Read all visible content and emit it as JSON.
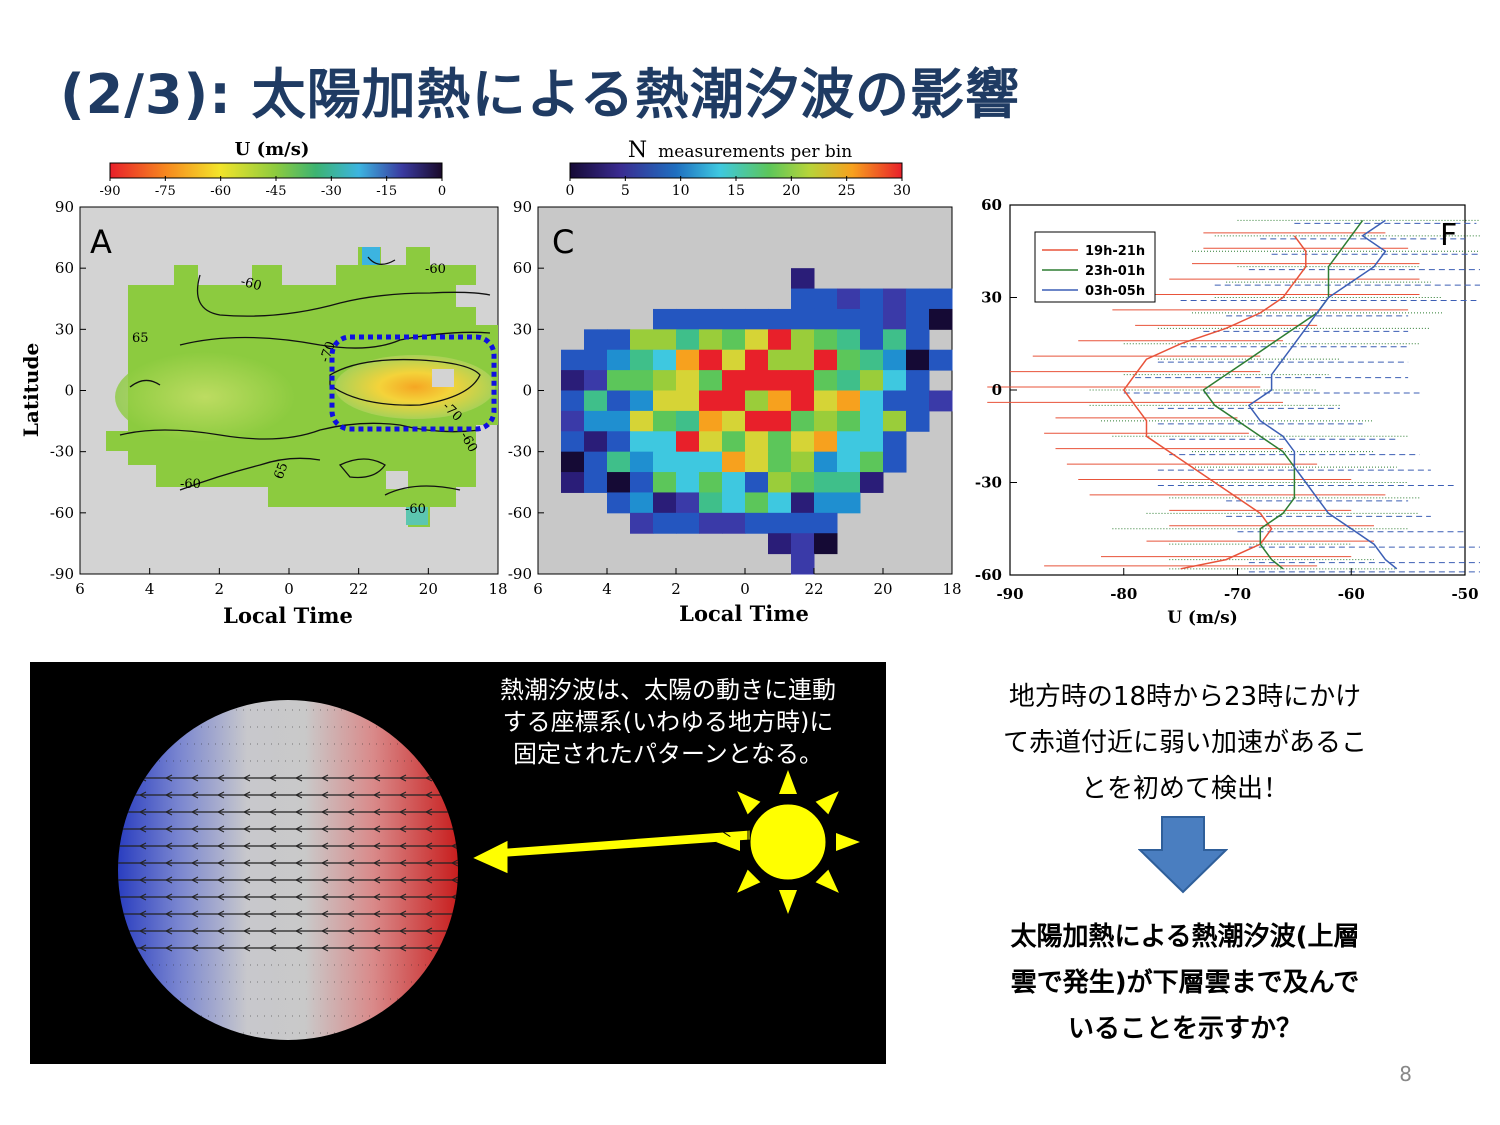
{
  "slide": {
    "title": "(2/3):  太陽加熱による熱潮汐波の影響",
    "page_number": "8"
  },
  "panel_a": {
    "letter": "A",
    "colorbar_title": "U (m/s)",
    "colorbar_ticks": [
      "-90",
      "-75",
      "-60",
      "-45",
      "-30",
      "-15",
      "0"
    ],
    "ylabel": "Latitude",
    "xlabel": "Local Time",
    "yticks": [
      "90",
      "60",
      "30",
      "0",
      "-30",
      "-60",
      "-90"
    ],
    "xticks": [
      "6",
      "4",
      "2",
      "0",
      "22",
      "20",
      "18"
    ],
    "contour_labels": [
      "65",
      "-60",
      "65",
      "-60",
      "-70",
      "-70",
      "-60",
      "-60",
      "-60"
    ]
  },
  "panel_c": {
    "letter": "C",
    "colorbar_title_n": "N",
    "colorbar_title_rest": "measurements per bin",
    "colorbar_ticks": [
      "0",
      "5",
      "10",
      "15",
      "20",
      "25",
      "30"
    ],
    "xlabel": "Local Time",
    "yticks": [
      "90",
      "60",
      "30",
      "0",
      "-30",
      "-60",
      "-90"
    ],
    "xticks": [
      "6",
      "4",
      "2",
      "0",
      "22",
      "20",
      "18"
    ]
  },
  "chart_data": {
    "type": "line",
    "panel_letter": "F",
    "xlabel": "U (m/s)",
    "ylabel": "",
    "xlim": [
      -90,
      -50
    ],
    "ylim": [
      -60,
      60
    ],
    "xticks": [
      "-90",
      "-80",
      "-70",
      "-60",
      "-50"
    ],
    "yticks": [
      "60",
      "30",
      "0",
      "-30",
      "-60"
    ],
    "legend_position": "top-left",
    "series": [
      {
        "name": "19h-21h",
        "color": "#e8533a",
        "points": [
          [
            -65,
            50
          ],
          [
            -64,
            45
          ],
          [
            -64,
            40
          ],
          [
            -65,
            35
          ],
          [
            -66,
            30
          ],
          [
            -68,
            25
          ],
          [
            -71,
            20
          ],
          [
            -75,
            15
          ],
          [
            -78,
            10
          ],
          [
            -79,
            5
          ],
          [
            -80,
            0
          ],
          [
            -79,
            -5
          ],
          [
            -78,
            -10
          ],
          [
            -78,
            -15
          ],
          [
            -76,
            -20
          ],
          [
            -74,
            -25
          ],
          [
            -72,
            -30
          ],
          [
            -70,
            -35
          ],
          [
            -68,
            -40
          ],
          [
            -67,
            -45
          ],
          [
            -68,
            -50
          ],
          [
            -71,
            -55
          ],
          [
            -75,
            -58
          ]
        ]
      },
      {
        "name": "23h-01h",
        "color": "#2e7d32",
        "points": [
          [
            -59,
            55
          ],
          [
            -60,
            50
          ],
          [
            -61,
            45
          ],
          [
            -62,
            40
          ],
          [
            -62,
            35
          ],
          [
            -62,
            30
          ],
          [
            -63,
            25
          ],
          [
            -65,
            20
          ],
          [
            -67,
            15
          ],
          [
            -69,
            10
          ],
          [
            -71,
            5
          ],
          [
            -73,
            0
          ],
          [
            -72,
            -5
          ],
          [
            -70,
            -10
          ],
          [
            -68,
            -15
          ],
          [
            -66,
            -20
          ],
          [
            -65,
            -25
          ],
          [
            -65,
            -30
          ],
          [
            -65,
            -35
          ],
          [
            -66,
            -40
          ],
          [
            -68,
            -45
          ],
          [
            -68,
            -50
          ],
          [
            -67,
            -55
          ],
          [
            -66,
            -58
          ]
        ]
      },
      {
        "name": "03h-05h",
        "color": "#3c5fb5",
        "points": [
          [
            -57,
            55
          ],
          [
            -59,
            50
          ],
          [
            -57,
            45
          ],
          [
            -58,
            40
          ],
          [
            -60,
            35
          ],
          [
            -62,
            30
          ],
          [
            -63,
            25
          ],
          [
            -64,
            20
          ],
          [
            -65,
            15
          ],
          [
            -66,
            10
          ],
          [
            -67,
            5
          ],
          [
            -67,
            0
          ],
          [
            -69,
            -5
          ],
          [
            -68,
            -10
          ],
          [
            -66,
            -15
          ],
          [
            -65,
            -20
          ],
          [
            -65,
            -25
          ],
          [
            -64,
            -30
          ],
          [
            -63,
            -35
          ],
          [
            -62,
            -40
          ],
          [
            -60,
            -45
          ],
          [
            -58,
            -50
          ],
          [
            -57,
            -55
          ],
          [
            -56,
            -58
          ]
        ]
      }
    ]
  },
  "venus_image": {
    "caption": "熱潮汐波は、太陽の動きに連動する座標系(いわゆる地方時)に固定されたパターンとなる。",
    "caption_lines": [
      "熱潮汐波は、太陽の動きに連動",
      "する座標系(いわゆる地方時)に",
      "固定されたパターンとなる。"
    ],
    "sun_color": "#ffff00",
    "arrow_color": "#ffff00"
  },
  "right_text": {
    "finding_lines": [
      "地方時の18時から23時にかけ",
      "て赤道付近に弱い加速があるこ",
      "とを初めて検出！"
    ],
    "arrow_color": "#4a7ec0",
    "conclusion_lines": [
      "太陽加熱による熱潮汐波(上層",
      "雲で発生)が下層雲まで及んで",
      "いることを示すか？"
    ]
  }
}
